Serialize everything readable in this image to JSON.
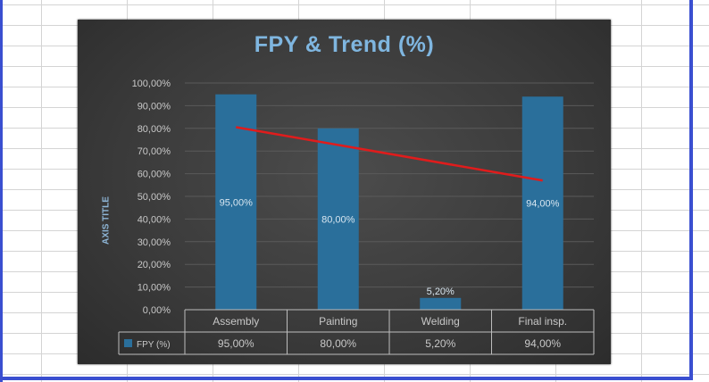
{
  "chart_data": {
    "type": "bar",
    "title": "FPY & Trend (%)",
    "ylabel": "AXIS TITLE",
    "xlabel": "",
    "categories": [
      "Assembly",
      "Painting",
      "Welding",
      "Final insp."
    ],
    "series": [
      {
        "name": "FPY (%)",
        "values": [
          95.0,
          80.0,
          5.2,
          94.0
        ],
        "value_labels": [
          "95,00%",
          "80,00%",
          "5,20%",
          "94,00%"
        ],
        "color": "#2a6f9b"
      }
    ],
    "trendline": {
      "type": "linear",
      "color": "#e01c1c",
      "start": 80.5,
      "end": 57.0
    },
    "ylim": [
      0,
      100
    ],
    "yticks": [
      "0,00%",
      "10,00%",
      "20,00%",
      "30,00%",
      "40,00%",
      "50,00%",
      "60,00%",
      "70,00%",
      "80,00%",
      "90,00%",
      "100,00%"
    ],
    "grid": true,
    "data_table": true,
    "legend": "data-table-key"
  },
  "colors": {
    "background": "#3a3a3a",
    "title": "#7fb6e0",
    "text": "#c8c8c8",
    "bar": "#2a6f9b",
    "trend": "#e01c1c",
    "selection": "#3a4fd0"
  }
}
